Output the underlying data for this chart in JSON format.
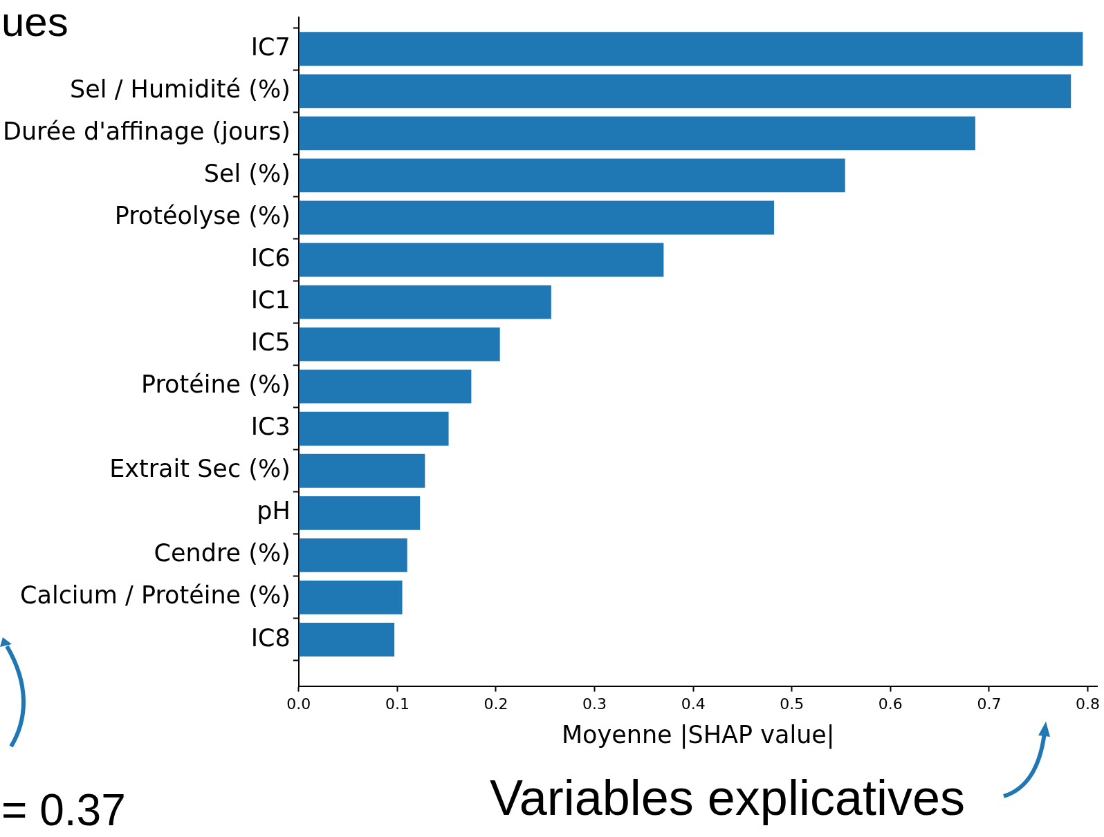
{
  "chart_data": {
    "type": "bar",
    "orientation": "horizontal",
    "xlabel": "Moyenne |SHAP value|",
    "categories": [
      "IC7",
      "Sel / Humidité (%)",
      "Durée d'affinage (jours)",
      "Sel (%)",
      "Protéolyse (%)",
      "IC6",
      "IC1",
      "IC5",
      "Protéine (%)",
      "IC3",
      "Extrait Sec (%)",
      "pH",
      "Cendre (%)",
      "Calcium / Protéine (%)",
      "IC8"
    ],
    "values": [
      0.795,
      0.783,
      0.686,
      0.554,
      0.482,
      0.37,
      0.256,
      0.204,
      0.175,
      0.152,
      0.128,
      0.123,
      0.11,
      0.105,
      0.097
    ],
    "color": "#1f77b4",
    "xlim": [
      0,
      0.81
    ],
    "xticks": [
      {
        "value": 0,
        "label": "0.0"
      },
      {
        "value": 0.1,
        "label": "0.1"
      },
      {
        "value": 0.2,
        "label": "0.2"
      },
      {
        "value": 0.3,
        "label": "0.3"
      },
      {
        "value": 0.4,
        "label": "0.4"
      },
      {
        "value": 0.5,
        "label": "0.5"
      },
      {
        "value": 0.6,
        "label": "0.6"
      },
      {
        "value": 0.7,
        "label": "0.7"
      },
      {
        "value": 0.8,
        "label": "0.8"
      }
    ],
    "grid": false,
    "legend": false,
    "annotations": [
      "ues",
      "= 0.37",
      "Variables explicatives"
    ]
  }
}
